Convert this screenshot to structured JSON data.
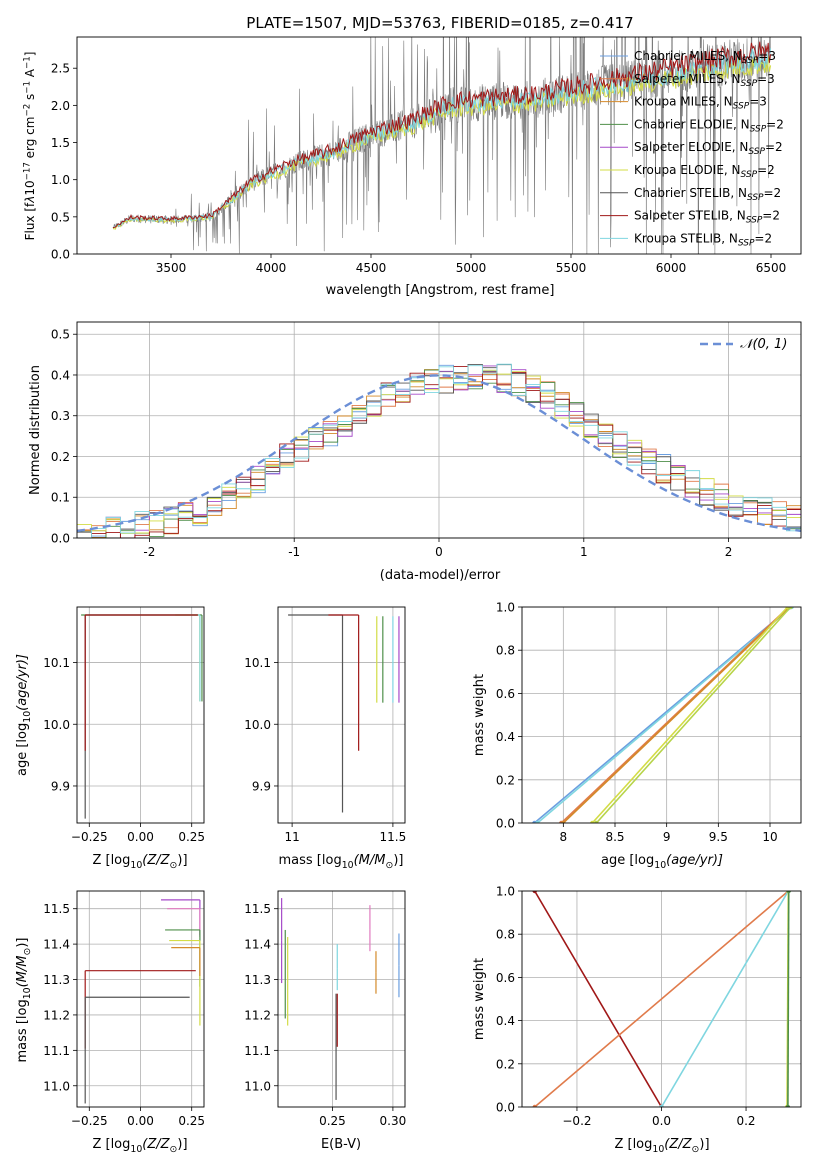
{
  "chart_data": [
    {
      "type": "line",
      "panel": "spectrum",
      "title": "PLATE=1507, MJD=53763, FIBERID=0185, z=0.417",
      "xlabel": "wavelength [Angstrom, rest frame]",
      "ylabel_parts": [
        "Flux [f",
        "λ",
        "10",
        "−17",
        " erg cm",
        "−2",
        " s",
        "−1",
        " A",
        "−1",
        "]"
      ],
      "xlim": [
        3030,
        6650
      ],
      "ylim": [
        0,
        2.92
      ],
      "xticks": [
        3500,
        4000,
        4500,
        5000,
        5500,
        6000,
        6500
      ],
      "yticks": [
        0.0,
        0.5,
        1.0,
        1.5,
        2.0,
        2.5
      ],
      "grid": false,
      "legend_position": "upper-right",
      "data_envelope": {
        "x": [
          3210,
          3300,
          3500,
          3700,
          3900,
          4100,
          4300,
          4500,
          4700,
          4900,
          5100,
          5300,
          5500,
          5700,
          5900,
          6100,
          6300,
          6500
        ],
        "model": [
          0.35,
          0.48,
          0.46,
          0.5,
          0.95,
          1.2,
          1.36,
          1.6,
          1.75,
          2.0,
          2.05,
          2.08,
          2.18,
          2.28,
          2.38,
          2.48,
          2.58,
          2.65
        ]
      },
      "series": [
        {
          "name": "Chabrier MILES",
          "nssp": "3",
          "color": "#6b9fe0"
        },
        {
          "name": "Salpeter MILES",
          "nssp": "3",
          "color": "#e07b4b"
        },
        {
          "name": "Kroupa MILES",
          "nssp": "3",
          "color": "#d48a2a"
        },
        {
          "name": "Chabrier ELODIE",
          "nssp": "2",
          "color": "#4f8f4a"
        },
        {
          "name": "Salpeter ELODIE",
          "nssp": "2",
          "color": "#a64ac9"
        },
        {
          "name": "Kroupa ELODIE",
          "nssp": "2",
          "color": "#d3dc46"
        },
        {
          "name": "Chabrier STELIB",
          "nssp": "2",
          "color": "#555555"
        },
        {
          "name": "Salpeter STELIB",
          "nssp": "2",
          "color": "#a01818"
        },
        {
          "name": "Kroupa STELIB",
          "nssp": "2",
          "color": "#7fd6e0"
        }
      ]
    },
    {
      "type": "step-histogram",
      "panel": "residuals",
      "xlabel": "(data-model)/error",
      "ylabel": "Normed distribution",
      "xlim": [
        -2.5,
        2.5
      ],
      "ylim": [
        0,
        0.53
      ],
      "xticks": [
        -2,
        -1,
        0,
        1,
        2
      ],
      "yticks": [
        0.0,
        0.1,
        0.2,
        0.3,
        0.4,
        0.5
      ],
      "grid": true,
      "legend_entry": "𝒩(0, 1)",
      "legend_position": "upper-right",
      "gaussian_color": "#6b8fd6",
      "bin_width": 0.1,
      "histogram_envelope": {
        "x": [
          -2.5,
          -2.2,
          -1.9,
          -1.6,
          -1.3,
          -1.0,
          -0.7,
          -0.4,
          -0.1,
          0.2,
          0.5,
          0.8,
          1.1,
          1.4,
          1.7,
          2.0,
          2.3,
          2.5
        ],
        "y": [
          0.0,
          0.02,
          0.04,
          0.07,
          0.13,
          0.21,
          0.27,
          0.34,
          0.38,
          0.4,
          0.39,
          0.34,
          0.26,
          0.2,
          0.14,
          0.09,
          0.06,
          0.04
        ]
      }
    },
    {
      "type": "scatter",
      "panel": "age-vs-metallicity",
      "xlabel_parts": [
        "Z [log",
        "10",
        "(Z/Z",
        "⊙",
        ")]"
      ],
      "ylabel_parts": [
        "age  [log",
        "10",
        "(age/yr)]"
      ],
      "xlim": [
        -0.31,
        0.31
      ],
      "ylim": [
        9.84,
        10.19
      ],
      "xticks": [
        -0.25,
        0.0,
        0.25
      ],
      "xtick_labels": [
        "−0.25",
        "0.00",
        "0.25"
      ],
      "yticks": [
        9.9,
        10.0,
        10.1
      ],
      "grid": true,
      "points": [
        {
          "x": 0.3,
          "y": 10.177,
          "color": "#4f8f4a",
          "err_left": 0.59,
          "err_down": 0.14
        },
        {
          "x": 0.29,
          "y": 10.177,
          "color": "#d3dc46",
          "err_left": 0.12,
          "err_down": 0.14
        },
        {
          "x": 0.29,
          "y": 10.177,
          "color": "#7fd6e0",
          "err_left": 0.12,
          "err_down": 0.14
        },
        {
          "x": -0.27,
          "y": 10.177,
          "color": "#555555",
          "err_right": 0.55,
          "err_down": 0.33
        },
        {
          "x": -0.27,
          "y": 10.177,
          "color": "#a01818",
          "err_right": 0.55,
          "err_down": 0.22
        }
      ]
    },
    {
      "type": "scatter",
      "panel": "age-vs-mass",
      "xlabel_parts": [
        "mass [log",
        "10",
        "(M/M",
        "⊙",
        ")]"
      ],
      "xlim": [
        10.93,
        11.56
      ],
      "ylim": [
        9.84,
        10.19
      ],
      "xticks": [
        11.0,
        11.5
      ],
      "yticks": [
        9.9,
        10.0,
        10.1
      ],
      "grid": true,
      "points": [
        {
          "x": 11.25,
          "y": 10.177,
          "color": "#555555",
          "err_left": 0.27,
          "err_down": 0.32
        },
        {
          "x": 11.33,
          "y": 10.177,
          "color": "#a01818",
          "err_left": 0.15,
          "err_down": 0.22
        },
        {
          "x": 11.42,
          "y": 10.175,
          "color": "#d3dc46",
          "err_down": 0.14
        },
        {
          "x": 11.45,
          "y": 10.175,
          "color": "#4f8f4a",
          "err_down": 0.14
        },
        {
          "x": 11.53,
          "y": 10.175,
          "color": "#a64ac9",
          "err_down": 0.14
        },
        {
          "x": 11.5,
          "y": 10.175,
          "color": "#7fd6e0",
          "err_down": 0.14
        }
      ]
    },
    {
      "type": "line",
      "panel": "mass-weight-vs-age",
      "xlabel_parts": [
        "age  [log",
        "10",
        "(age/yr)]"
      ],
      "ylabel": "mass weight",
      "xlim": [
        7.6,
        10.3
      ],
      "ylim": [
        0,
        1
      ],
      "xticks": [
        8.0,
        8.5,
        9.0,
        9.5,
        10.0
      ],
      "yticks": [
        0.0,
        0.2,
        0.4,
        0.6,
        0.8,
        1.0
      ],
      "grid": true,
      "series": [
        {
          "color": "#6b9fe0",
          "x": [
            7.72,
            10.2
          ],
          "y": [
            0,
            1
          ]
        },
        {
          "color": "#7fd6e0",
          "x": [
            7.75,
            10.21
          ],
          "y": [
            0,
            1
          ]
        },
        {
          "color": "#e07b4b",
          "x": [
            7.98,
            10.18
          ],
          "y": [
            0,
            1
          ]
        },
        {
          "color": "#d48a2a",
          "x": [
            8.0,
            10.19
          ],
          "y": [
            0,
            1
          ]
        },
        {
          "color": "#d3dc46",
          "x": [
            8.28,
            10.17
          ],
          "y": [
            0,
            1
          ]
        },
        {
          "color": "#b7d44a",
          "x": [
            8.32,
            10.2
          ],
          "y": [
            0,
            1
          ]
        }
      ]
    },
    {
      "type": "scatter",
      "panel": "mass-vs-metallicity",
      "xlabel_parts": [
        "Z [log",
        "10",
        "(Z/Z",
        "⊙",
        ")]"
      ],
      "ylabel_parts": [
        "mass [log",
        "10",
        "(M/M",
        "⊙",
        ")]"
      ],
      "xlim": [
        -0.31,
        0.31
      ],
      "ylim": [
        10.94,
        11.55
      ],
      "xticks": [
        -0.25,
        0.0,
        0.25
      ],
      "xtick_labels": [
        "−0.25",
        "0.00",
        "0.25"
      ],
      "yticks": [
        11.0,
        11.1,
        11.2,
        11.3,
        11.4,
        11.5
      ],
      "grid": true,
      "points": [
        {
          "x": 0.29,
          "y": 11.525,
          "color": "#a64ac9",
          "err_left": 0.19,
          "err_down": 0.1
        },
        {
          "x": 0.29,
          "y": 11.5,
          "color": "#e07bbf",
          "err_left": 0.16,
          "err_down": 0.08
        },
        {
          "x": 0.29,
          "y": 11.44,
          "color": "#4f8f4a",
          "err_left": 0.17,
          "err_down": 0.16
        },
        {
          "x": 0.29,
          "y": 11.41,
          "color": "#d3dc46",
          "err_left": 0.15,
          "err_down": 0.24
        },
        {
          "x": 0.29,
          "y": 11.39,
          "color": "#d48a2a",
          "err_left": 0.14,
          "err_down": 0.08
        },
        {
          "x": -0.27,
          "y": 11.325,
          "color": "#a01818",
          "err_right": 0.54,
          "err_down": 0.22
        },
        {
          "x": -0.27,
          "y": 11.25,
          "color": "#555555",
          "err_right": 0.51,
          "err_down": 0.3
        }
      ]
    },
    {
      "type": "scatter",
      "panel": "mass-vs-ebv",
      "xlabel": "E(B-V)",
      "xlim": [
        0.205,
        0.31
      ],
      "ylim": [
        10.94,
        11.55
      ],
      "xticks": [
        0.25,
        0.3
      ],
      "xtick_labels": [
        "0.25",
        "0.30"
      ],
      "yticks": [
        11.0,
        11.1,
        11.2,
        11.3,
        11.4,
        11.5
      ],
      "grid": true,
      "points": [
        {
          "x": 0.208,
          "y": 11.41,
          "err_up": 0.12,
          "err_down": 0.12,
          "color": "#a64ac9"
        },
        {
          "x": 0.211,
          "y": 11.3,
          "err_up": 0.14,
          "err_down": 0.11,
          "color": "#4f8f4a"
        },
        {
          "x": 0.213,
          "y": 11.29,
          "err_up": 0.13,
          "err_down": 0.12,
          "color": "#d3dc46"
        },
        {
          "x": 0.253,
          "y": 11.18,
          "err_up": 0.08,
          "err_down": 0.22,
          "color": "#555555"
        },
        {
          "x": 0.254,
          "y": 11.2,
          "err_up": 0.06,
          "err_down": 0.09,
          "color": "#a01818"
        },
        {
          "x": 0.254,
          "y": 11.33,
          "err_up": 0.07,
          "err_down": 0.06,
          "color": "#7fd6e0"
        },
        {
          "x": 0.281,
          "y": 11.44,
          "err_up": 0.07,
          "err_down": 0.06,
          "color": "#e07bbf"
        },
        {
          "x": 0.286,
          "y": 11.32,
          "err_up": 0.06,
          "err_down": 0.06,
          "color": "#d48a2a"
        },
        {
          "x": 0.305,
          "y": 11.34,
          "err_up": 0.09,
          "err_down": 0.09,
          "color": "#6b9fe0"
        }
      ]
    },
    {
      "type": "line",
      "panel": "mass-weight-vs-metallicity",
      "xlabel_parts": [
        "Z [log",
        "10",
        "(Z/Z",
        "⊙",
        ")]"
      ],
      "ylabel": "mass weight",
      "xlim": [
        -0.33,
        0.33
      ],
      "ylim": [
        0,
        1
      ],
      "xticks": [
        -0.2,
        0.0,
        0.2
      ],
      "xtick_labels": [
        "−0.2",
        "0.0",
        "0.2"
      ],
      "yticks": [
        0.0,
        0.2,
        0.4,
        0.6,
        0.8,
        1.0
      ],
      "grid": true,
      "series": [
        {
          "color": "#a01818",
          "x": [
            -0.3,
            0.0
          ],
          "y": [
            1,
            0
          ]
        },
        {
          "color": "#e07b4b",
          "x": [
            -0.3,
            0.3
          ],
          "y": [
            0,
            1
          ]
        },
        {
          "color": "#7fd6e0",
          "x": [
            0.0,
            0.3
          ],
          "y": [
            0,
            1
          ]
        },
        {
          "color": "#d3dc46",
          "x": [
            0.297,
            0.3
          ],
          "y": [
            0,
            1
          ]
        },
        {
          "color": "#4f8f4a",
          "x": [
            0.299,
            0.301
          ],
          "y": [
            0,
            1
          ]
        }
      ]
    }
  ]
}
